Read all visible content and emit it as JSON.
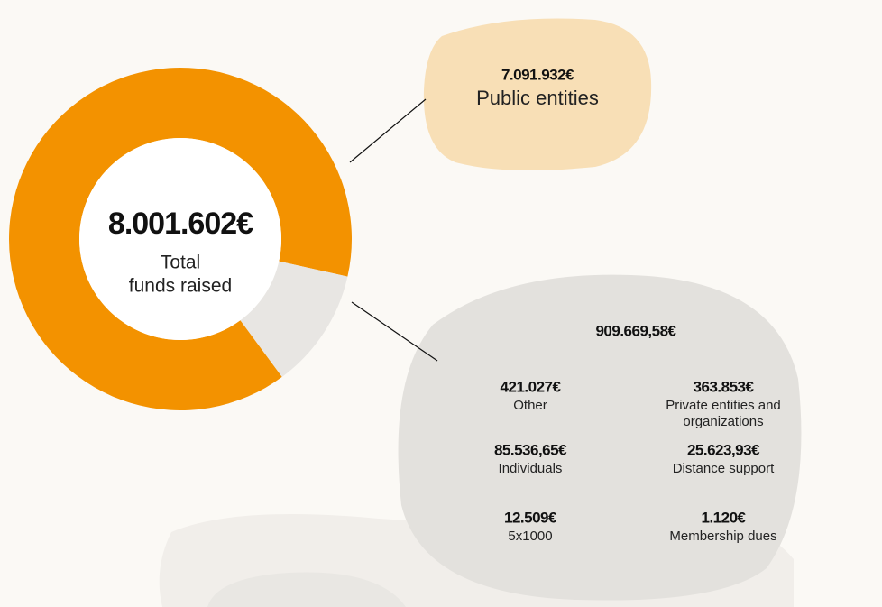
{
  "chart_data": {
    "type": "pie",
    "donut": true,
    "total_label": "8.001.602€",
    "total_caption": [
      "Total",
      "funds raised"
    ],
    "categories": [
      "Public entities",
      null
    ],
    "values": [
      7091932,
      909669.58
    ],
    "value_labels": [
      "7.091.932€",
      "909.669,58€"
    ],
    "colors": [
      "#f39200",
      "#e8e6e3"
    ],
    "breakdown": {
      "value_labels": [
        "421.027€",
        "363.853€",
        "85.536,65€",
        "25.623,93€",
        "12.509€",
        "1.120€"
      ],
      "categories": [
        [
          "Other"
        ],
        [
          "Private entities and",
          "organizations"
        ],
        [
          "Individuals"
        ],
        [
          "Distance support"
        ],
        [
          "5x1000"
        ],
        [
          "Membership dues"
        ]
      ]
    }
  }
}
